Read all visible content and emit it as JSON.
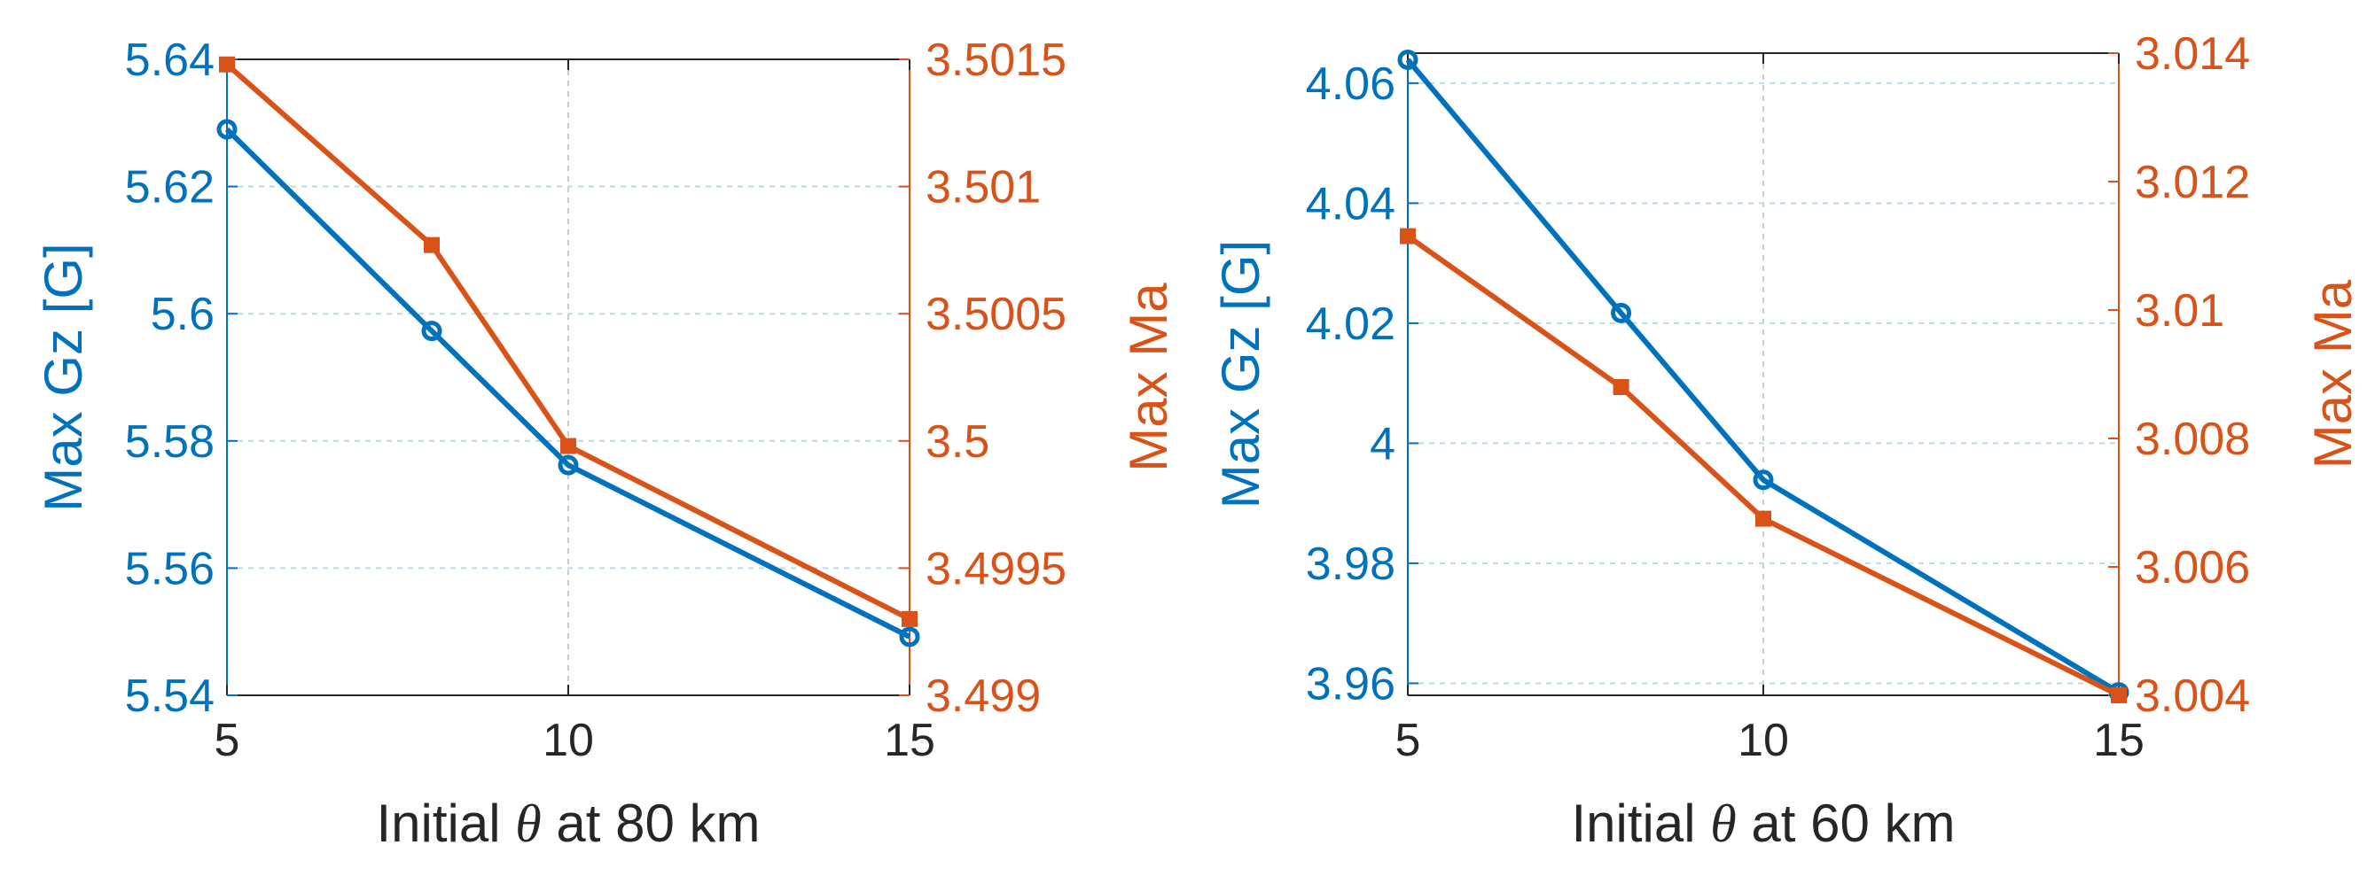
{
  "chart_data": [
    {
      "type": "line",
      "xlabel_parts": [
        "Initial ",
        "θ",
        " at 80 km"
      ],
      "ylabel_left": "Max Gz [G]",
      "ylabel_right": "Max Ma",
      "grid": true,
      "x": [
        5,
        8,
        10,
        15
      ],
      "xlim": [
        5,
        15
      ],
      "xticks": [
        "5",
        "10",
        "15"
      ],
      "xtick_values": [
        5,
        10,
        15
      ],
      "ylim_left": [
        5.54,
        5.64
      ],
      "yticks_left": [
        "5.54",
        "5.56",
        "5.58",
        "5.6",
        "5.62",
        "5.64"
      ],
      "ytick_values_left": [
        5.54,
        5.56,
        5.58,
        5.6,
        5.62,
        5.64
      ],
      "ylim_right": [
        3.499,
        3.5015
      ],
      "yticks_right": [
        "3.499",
        "3.4995",
        "3.5",
        "3.5005",
        "3.501",
        "3.5015"
      ],
      "ytick_values_right": [
        3.499,
        3.4995,
        3.5,
        3.5005,
        3.501,
        3.5015
      ],
      "series": [
        {
          "axis": "left",
          "marker": "circle",
          "color": "#0072BD",
          "values": [
            5.629,
            5.5973,
            5.5762,
            5.5492
          ]
        },
        {
          "axis": "right",
          "marker": "square",
          "color": "#D95319",
          "values": [
            3.50148,
            3.50077,
            3.49998,
            3.4993
          ]
        }
      ]
    },
    {
      "type": "line",
      "xlabel_parts": [
        "Initial ",
        "θ",
        " at 60 km"
      ],
      "ylabel_left": "Max Gz [G]",
      "ylabel_right": "Max Ma",
      "grid": true,
      "x": [
        5,
        8,
        10,
        15
      ],
      "xlim": [
        5,
        15
      ],
      "xticks": [
        "5",
        "10",
        "15"
      ],
      "xtick_values": [
        5,
        10,
        15
      ],
      "ylim_left": [
        3.958,
        4.065
      ],
      "yticks_left": [
        "3.96",
        "3.98",
        "4",
        "4.02",
        "4.04",
        "4.06"
      ],
      "ytick_values_left": [
        3.96,
        3.98,
        4.0,
        4.02,
        4.04,
        4.06
      ],
      "ylim_right": [
        3.004,
        3.014
      ],
      "yticks_right": [
        "3.004",
        "3.006",
        "3.008",
        "3.01",
        "3.012",
        "3.014"
      ],
      "ytick_values_right": [
        3.004,
        3.006,
        3.008,
        3.01,
        3.012,
        3.014
      ],
      "series": [
        {
          "axis": "left",
          "marker": "circle",
          "color": "#0072BD",
          "values": [
            4.0639,
            4.0217,
            3.9939,
            3.9585
          ]
        },
        {
          "axis": "right",
          "marker": "square",
          "color": "#D95319",
          "values": [
            3.01115,
            3.0088,
            3.00675,
            3.004
          ]
        }
      ]
    }
  ]
}
